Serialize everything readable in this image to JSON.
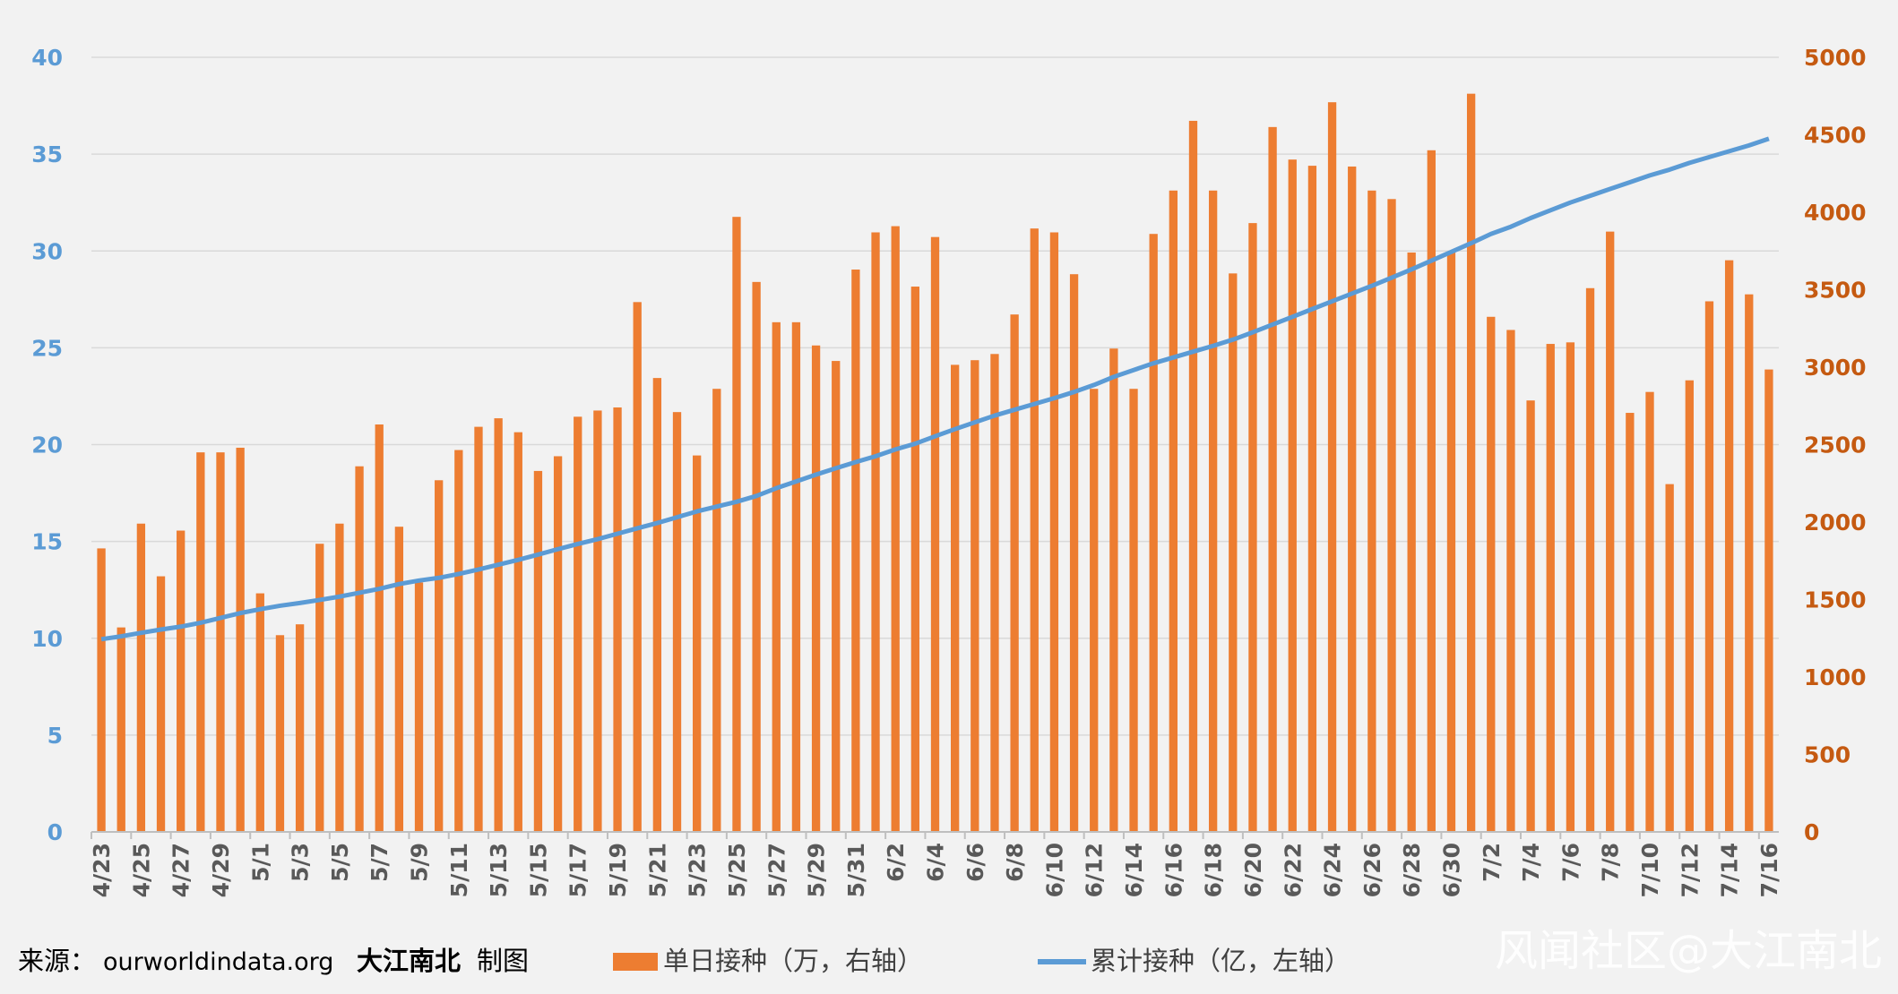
{
  "chart_data": {
    "type": "bar",
    "title": "",
    "categories": [
      "4/23",
      "4/24",
      "4/25",
      "4/26",
      "4/27",
      "4/28",
      "4/29",
      "4/30",
      "5/1",
      "5/2",
      "5/3",
      "5/4",
      "5/5",
      "5/6",
      "5/7",
      "5/8",
      "5/9",
      "5/10",
      "5/11",
      "5/12",
      "5/13",
      "5/14",
      "5/15",
      "5/16",
      "5/17",
      "5/18",
      "5/19",
      "5/20",
      "5/21",
      "5/22",
      "5/23",
      "5/24",
      "5/25",
      "5/26",
      "5/27",
      "5/28",
      "5/29",
      "5/30",
      "5/31",
      "6/1",
      "6/2",
      "6/3",
      "6/4",
      "6/5",
      "6/6",
      "6/7",
      "6/8",
      "6/9",
      "6/10",
      "6/11",
      "6/12",
      "6/13",
      "6/14",
      "6/15",
      "6/16",
      "6/17",
      "6/18",
      "6/19",
      "6/20",
      "6/21",
      "6/22",
      "6/23",
      "6/24",
      "6/25",
      "6/26",
      "6/27",
      "6/28",
      "6/29",
      "6/30",
      "7/1",
      "7/2",
      "7/3",
      "7/4",
      "7/5",
      "7/6",
      "7/7",
      "7/8",
      "7/9",
      "7/10",
      "7/11",
      "7/12",
      "7/13",
      "7/14",
      "7/15",
      "7/16"
    ],
    "x_tick_labels": [
      "4/23",
      "4/25",
      "4/27",
      "4/29",
      "5/1",
      "5/3",
      "5/5",
      "5/7",
      "5/9",
      "5/11",
      "5/13",
      "5/15",
      "5/17",
      "5/19",
      "5/21",
      "5/23",
      "5/25",
      "5/27",
      "5/29",
      "5/31",
      "6/2",
      "6/4",
      "6/6",
      "6/8",
      "6/10",
      "6/12",
      "6/14",
      "6/16",
      "6/18",
      "6/20",
      "6/22",
      "6/24",
      "6/26",
      "6/28",
      "6/30",
      "7/2",
      "7/4",
      "7/6",
      "7/8",
      "7/10",
      "7/12",
      "7/14",
      "7/16"
    ],
    "series": [
      {
        "name": "单日接种（万，右轴）",
        "type": "bar",
        "axis": "right",
        "color": "#ed7d31",
        "values": [
          1830,
          1320,
          1990,
          1650,
          1945,
          2450,
          2450,
          2480,
          1540,
          1270,
          1340,
          1860,
          1990,
          2360,
          2630,
          1970,
          1610,
          2270,
          2465,
          2615,
          2670,
          2580,
          2330,
          2425,
          2680,
          2720,
          2740,
          3420,
          2930,
          2710,
          2430,
          2860,
          3970,
          3550,
          3290,
          3290,
          3140,
          3040,
          3630,
          3870,
          3910,
          3520,
          3840,
          3015,
          3045,
          3085,
          3340,
          3895,
          3870,
          3600,
          2860,
          3120,
          2860,
          3860,
          4140,
          4590,
          4140,
          3605,
          3930,
          4550,
          4340,
          4300,
          4710,
          4295,
          4140,
          4085,
          3740,
          4400,
          3740,
          4765,
          3325,
          3240,
          2785,
          3150,
          3160,
          3510,
          3875,
          2705,
          2840,
          2245,
          2915,
          3425,
          3690,
          3470,
          2985
        ]
      },
      {
        "name": "累计接种（亿，左轴）",
        "type": "line",
        "axis": "left",
        "color": "#5b9bd5",
        "values": [
          9.95,
          10.1,
          10.28,
          10.45,
          10.6,
          10.8,
          11.05,
          11.3,
          11.5,
          11.68,
          11.82,
          11.98,
          12.15,
          12.35,
          12.55,
          12.8,
          12.98,
          13.12,
          13.32,
          13.55,
          13.8,
          14.05,
          14.32,
          14.6,
          14.87,
          15.12,
          15.4,
          15.68,
          15.95,
          16.25,
          16.55,
          16.8,
          17.05,
          17.35,
          17.75,
          18.1,
          18.45,
          18.78,
          19.1,
          19.4,
          19.75,
          20.05,
          20.43,
          20.8,
          21.15,
          21.5,
          21.8,
          22.1,
          22.4,
          22.72,
          23.08,
          23.5,
          23.85,
          24.2,
          24.5,
          24.8,
          25.1,
          25.42,
          25.8,
          26.2,
          26.6,
          27.0,
          27.4,
          27.8,
          28.2,
          28.62,
          29.05,
          29.5,
          29.95,
          30.4,
          30.88,
          31.25,
          31.7,
          32.1,
          32.5,
          32.85,
          33.2,
          33.55,
          33.9,
          34.2,
          34.55,
          34.85,
          35.15,
          35.45,
          35.8
        ]
      }
    ],
    "y_left": {
      "min": 0,
      "max": 40,
      "ticks": [
        0,
        5,
        10,
        15,
        20,
        25,
        30,
        35,
        40
      ],
      "color": "#5b9bd5"
    },
    "y_right": {
      "min": 0,
      "max": 5000,
      "ticks": [
        0,
        500,
        1000,
        1500,
        2000,
        2500,
        3000,
        3500,
        4000,
        4500,
        5000
      ],
      "color": "#c55a11"
    },
    "grid": true,
    "legend_position": "bottom"
  },
  "footer": {
    "source_label": "来源：",
    "source_site": "ourworldindata.org",
    "author": "大江南北",
    "made_by": "制图"
  },
  "watermark": "风闻社区@大江南北",
  "legend": {
    "bar_label": "单日接种（万，右轴）",
    "line_label": "累计接种（亿，左轴）"
  }
}
